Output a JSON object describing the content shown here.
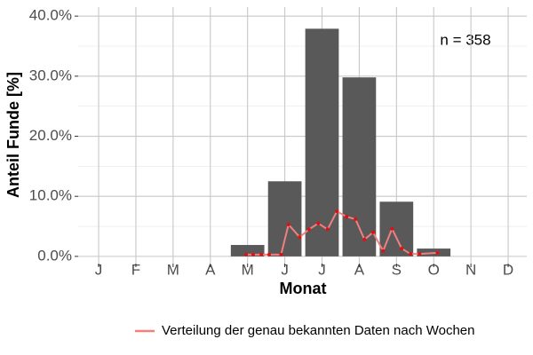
{
  "chart_data": {
    "type": "bar",
    "x_label": "Monat",
    "y_label": "Anteil Funde [%]",
    "annotation": "n = 358",
    "categories": [
      "J",
      "F",
      "M",
      "A",
      "M",
      "J",
      "J",
      "A",
      "S",
      "O",
      "N",
      "D"
    ],
    "values": [
      0,
      0,
      0,
      0,
      1.9,
      12.5,
      37.9,
      29.8,
      9.1,
      1.3,
      0,
      0
    ],
    "color": "#595959",
    "xlim": [
      0.45,
      12.5
    ],
    "ylim": [
      -1.2,
      41.5
    ],
    "yticks": [
      {
        "value": 0,
        "label": "0.0%"
      },
      {
        "value": 10,
        "label": "10.0%"
      },
      {
        "value": 20,
        "label": "20.0%"
      },
      {
        "value": 30,
        "label": "30.0%"
      },
      {
        "value": 40,
        "label": "40.0%"
      }
    ],
    "grid": true,
    "legend": "bottom",
    "line": {
      "name": "Verteilung der genau bekannten Daten nach Wochen",
      "color": "#f08080",
      "point_color": "#e01010",
      "x": [
        4.96,
        5.15,
        5.37,
        5.58,
        5.9,
        6.1,
        6.4,
        6.65,
        6.9,
        7.15,
        7.4,
        7.66,
        7.9,
        8.14,
        8.37,
        8.64,
        8.88,
        9.14,
        9.38,
        9.62,
        10.1
      ],
      "values": [
        0.3,
        0.3,
        0.3,
        0.3,
        0.3,
        5.3,
        3.2,
        4.5,
        5.5,
        4.5,
        7.5,
        6.6,
        6.2,
        2.8,
        4.0,
        0.9,
        4.6,
        1.3,
        0.4,
        0.4,
        0.6
      ]
    }
  }
}
